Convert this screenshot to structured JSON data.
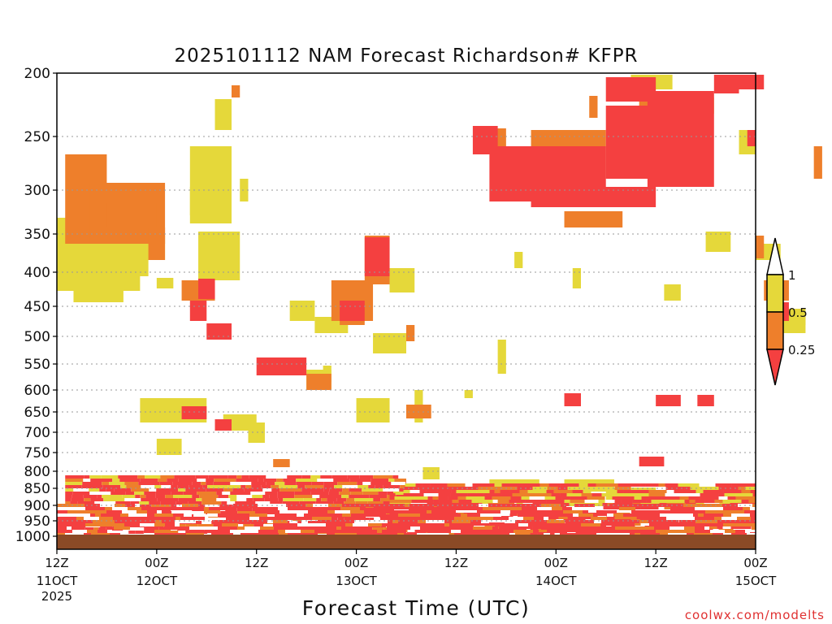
{
  "chart_data": {
    "type": "heatmap",
    "title": "2025101112 NAM Forecast Richardson# KFPR",
    "xlabel": "Forecast Time (UTC)",
    "ylabel": "",
    "credit": "coolwx.com/modelts",
    "y_axis": {
      "scale": "pressure",
      "range_hpa": [
        200,
        1000
      ],
      "ticks": [
        "200",
        "250",
        "300",
        "350",
        "400",
        "450",
        "500",
        "550",
        "600",
        "650",
        "700",
        "750",
        "800",
        "850",
        "900",
        "950",
        "1000"
      ]
    },
    "x_axis": {
      "range_hours": [
        0,
        84
      ],
      "ticks": [
        {
          "hour": 0,
          "label": "12Z",
          "sub": "11OCT",
          "year": "2025"
        },
        {
          "hour": 12,
          "label": "00Z",
          "sub": "12OCT"
        },
        {
          "hour": 24,
          "label": "12Z"
        },
        {
          "hour": 36,
          "label": "00Z",
          "sub": "13OCT"
        },
        {
          "hour": 48,
          "label": "12Z"
        },
        {
          "hour": 60,
          "label": "00Z",
          "sub": "14OCT"
        },
        {
          "hour": 72,
          "label": "12Z"
        },
        {
          "hour": 84,
          "label": "00Z",
          "sub": "15OCT"
        }
      ]
    },
    "legend": {
      "placement": "right",
      "levels": [
        {
          "label": "1"
        },
        {
          "label": "0.5"
        },
        {
          "label": "0.25"
        }
      ],
      "colors": {
        "ri_0_0.25": "#f44040",
        "ri_0.25_0.5": "#ee7f2b",
        "ri_0.5_1": "#e5d83a",
        "ri_gt_1": "#ffffff",
        "ground": "#8b4a26"
      }
    },
    "regions": [
      {
        "band": "yellow",
        "rects": [
          [
            0,
            10,
            268,
            358
          ],
          [
            1,
            8,
            330,
            345
          ],
          [
            2,
            8,
            355,
            372
          ],
          [
            16,
            21,
            180,
            275
          ],
          [
            17,
            22,
            285,
            345
          ],
          [
            8,
            11,
            320,
            340
          ],
          [
            9,
            13,
            290,
            320
          ],
          [
            12,
            14,
            342,
            355
          ],
          [
            16,
            19,
            230,
            265
          ],
          [
            19,
            21,
            122,
            160
          ],
          [
            22,
            23,
            220,
            248
          ],
          [
            28,
            31,
            370,
            395
          ],
          [
            30,
            33,
            455,
            480
          ],
          [
            31,
            35,
            390,
            410
          ],
          [
            32,
            33,
            450,
            470
          ],
          [
            40,
            43,
            330,
            360
          ],
          [
            38,
            42,
            410,
            435
          ],
          [
            43,
            44,
            480,
            520
          ],
          [
            49,
            50,
            480,
            490
          ],
          [
            53,
            54,
            418,
            460
          ],
          [
            55,
            56,
            310,
            330
          ],
          [
            62,
            63,
            330,
            355
          ],
          [
            69,
            74,
            92,
            110
          ],
          [
            73,
            75,
            350,
            370
          ],
          [
            76,
            79,
            120,
            140
          ],
          [
            78,
            81,
            285,
            310
          ],
          [
            82,
            84,
            160,
            190
          ],
          [
            86,
            90,
            390,
            410
          ],
          [
            84,
            87,
            300,
            320
          ],
          [
            87,
            90,
            380,
            400
          ],
          [
            61,
            67,
            590,
            605
          ],
          [
            10,
            18,
            490,
            520
          ],
          [
            12,
            15,
            540,
            560
          ],
          [
            23,
            25,
            520,
            545
          ],
          [
            20,
            24,
            510,
            530
          ],
          [
            36,
            40,
            490,
            520
          ],
          [
            44,
            46,
            575,
            590
          ],
          [
            52,
            58,
            590,
            610
          ],
          [
            66,
            72,
            600,
            615
          ]
        ]
      },
      {
        "band": "orange",
        "rects": [
          [
            1,
            6,
            190,
            300
          ],
          [
            4,
            13,
            225,
            300
          ],
          [
            6,
            12,
            250,
            280
          ],
          [
            11,
            13,
            280,
            320
          ],
          [
            15,
            19,
            345,
            370
          ],
          [
            21,
            22,
            105,
            120
          ],
          [
            33,
            38,
            345,
            395
          ],
          [
            37,
            40,
            290,
            350
          ],
          [
            34,
            37,
            370,
            400
          ],
          [
            42,
            43,
            400,
            420
          ],
          [
            52,
            54,
            158,
            190
          ],
          [
            57,
            66,
            160,
            220
          ],
          [
            61,
            68,
            260,
            280
          ],
          [
            64,
            65,
            118,
            145
          ],
          [
            70,
            73,
            120,
            140
          ],
          [
            85,
            88,
            345,
            370
          ],
          [
            84,
            85,
            290,
            318
          ],
          [
            91,
            92,
            180,
            220
          ],
          [
            30,
            33,
            460,
            480
          ],
          [
            42,
            45,
            498,
            515
          ],
          [
            26,
            28,
            565,
            575
          ],
          [
            53,
            55,
            606,
            625
          ]
        ]
      },
      {
        "band": "red",
        "rects": [
          [
            17,
            19,
            343,
            368
          ],
          [
            16,
            18,
            370,
            395
          ],
          [
            18,
            21,
            398,
            418
          ],
          [
            24,
            30,
            440,
            462
          ],
          [
            34,
            37,
            370,
            395
          ],
          [
            37,
            40,
            292,
            340
          ],
          [
            50,
            53,
            155,
            190
          ],
          [
            52,
            66,
            180,
            248
          ],
          [
            57,
            72,
            230,
            255
          ],
          [
            66,
            72,
            95,
            125
          ],
          [
            66,
            73,
            130,
            220
          ],
          [
            71,
            79,
            112,
            230
          ],
          [
            79,
            82,
            92,
            115
          ],
          [
            81,
            85,
            92,
            110
          ],
          [
            83,
            84,
            160,
            180
          ],
          [
            86,
            88,
            372,
            395
          ],
          [
            70,
            73,
            562,
            574
          ],
          [
            72,
            75,
            486,
            500
          ],
          [
            77,
            79,
            486,
            500
          ],
          [
            61,
            63,
            484,
            500
          ],
          [
            15,
            18,
            500,
            516
          ],
          [
            19,
            21,
            516,
            530
          ]
        ]
      },
      {
        "band": "low_level_mixed",
        "rects": [
          [
            1,
            42,
            585,
            660
          ],
          [
            40,
            84,
            595,
            660
          ],
          [
            0,
            84,
            620,
            665
          ]
        ]
      },
      {
        "band": "ground",
        "rects": [
          [
            0,
            84,
            658,
            676
          ]
        ]
      }
    ]
  }
}
